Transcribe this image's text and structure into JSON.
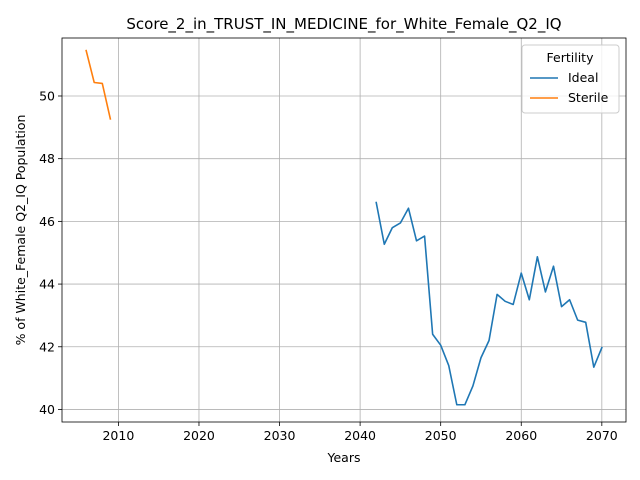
{
  "chart_data": {
    "type": "line",
    "title": "Score_2_in_TRUST_IN_MEDICINE_for_White_Female_Q2_IQ",
    "xlabel": "Years",
    "ylabel": "% of White_Female Q2_IQ Population",
    "xlim": [
      2003,
      2073
    ],
    "ylim": [
      39.6,
      51.85
    ],
    "xticks": [
      2010,
      2020,
      2030,
      2040,
      2050,
      2060,
      2070
    ],
    "yticks": [
      40,
      42,
      44,
      46,
      48,
      50
    ],
    "grid": true,
    "legend": {
      "title": "Fertility",
      "placement": "top-right"
    },
    "series": [
      {
        "name": "Ideal",
        "color": "#1f77b4",
        "x": [
          2042,
          2043,
          2044,
          2045,
          2046,
          2047,
          2048,
          2049,
          2050,
          2051,
          2052,
          2053,
          2054,
          2055,
          2056,
          2057,
          2058,
          2059,
          2060,
          2061,
          2062,
          2063,
          2064,
          2065,
          2066,
          2067,
          2068,
          2069,
          2070
        ],
        "y": [
          46.6,
          45.27,
          45.8,
          45.95,
          46.42,
          45.38,
          45.53,
          42.4,
          42.05,
          41.4,
          40.15,
          40.15,
          40.75,
          41.65,
          42.2,
          43.67,
          43.45,
          43.35,
          44.35,
          43.5,
          44.87,
          43.75,
          44.57,
          43.28,
          43.5,
          42.85,
          42.78,
          41.35,
          41.97
        ]
      },
      {
        "name": "Sterile",
        "color": "#ff7f0e",
        "x": [
          2006,
          2007,
          2008,
          2009
        ],
        "y": [
          51.45,
          50.43,
          50.4,
          49.27
        ]
      }
    ]
  }
}
